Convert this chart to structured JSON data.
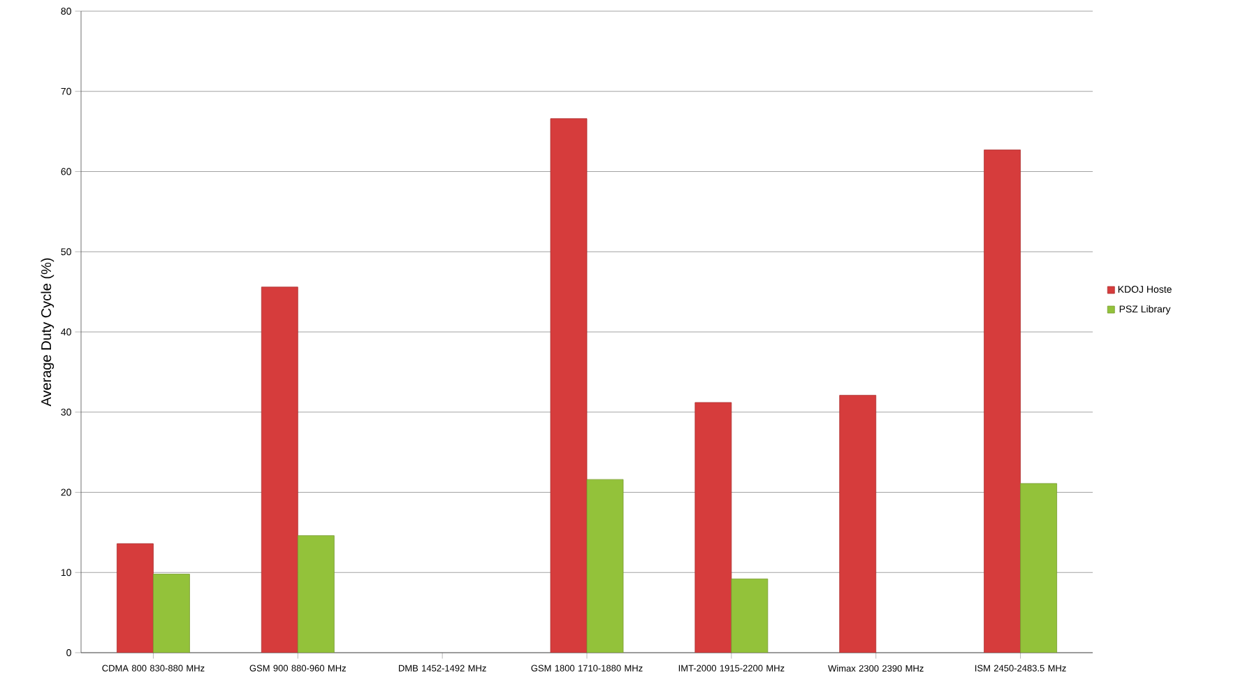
{
  "chart_data": {
    "type": "bar",
    "ylabel": "Average Duty Cycle (%)",
    "categories": [
      "CDMA 800 830-880 MHz",
      "GSM 900 880-960 MHz",
      "DMB 1452-1492 MHz",
      "GSM 1800 1710-1880 MHz",
      "IMT-2000 1915-2200 MHz",
      "Wimax 2300 2390 MHz",
      "ISM 2450-2483.5 MHz"
    ],
    "series": [
      {
        "name": "KDOJ Hoste",
        "color": "#d63c3c",
        "values": [
          13.6,
          45.6,
          null,
          66.6,
          31.2,
          32.1,
          62.7
        ]
      },
      {
        "name": "PSZ Library",
        "color": "#93c23a",
        "values": [
          9.8,
          14.6,
          null,
          21.6,
          9.2,
          null,
          21.1
        ]
      }
    ],
    "ylim": [
      0,
      80
    ],
    "yticks": [
      0,
      10,
      20,
      30,
      40,
      50,
      60,
      70,
      80
    ],
    "grid": "y",
    "legend": "right"
  }
}
